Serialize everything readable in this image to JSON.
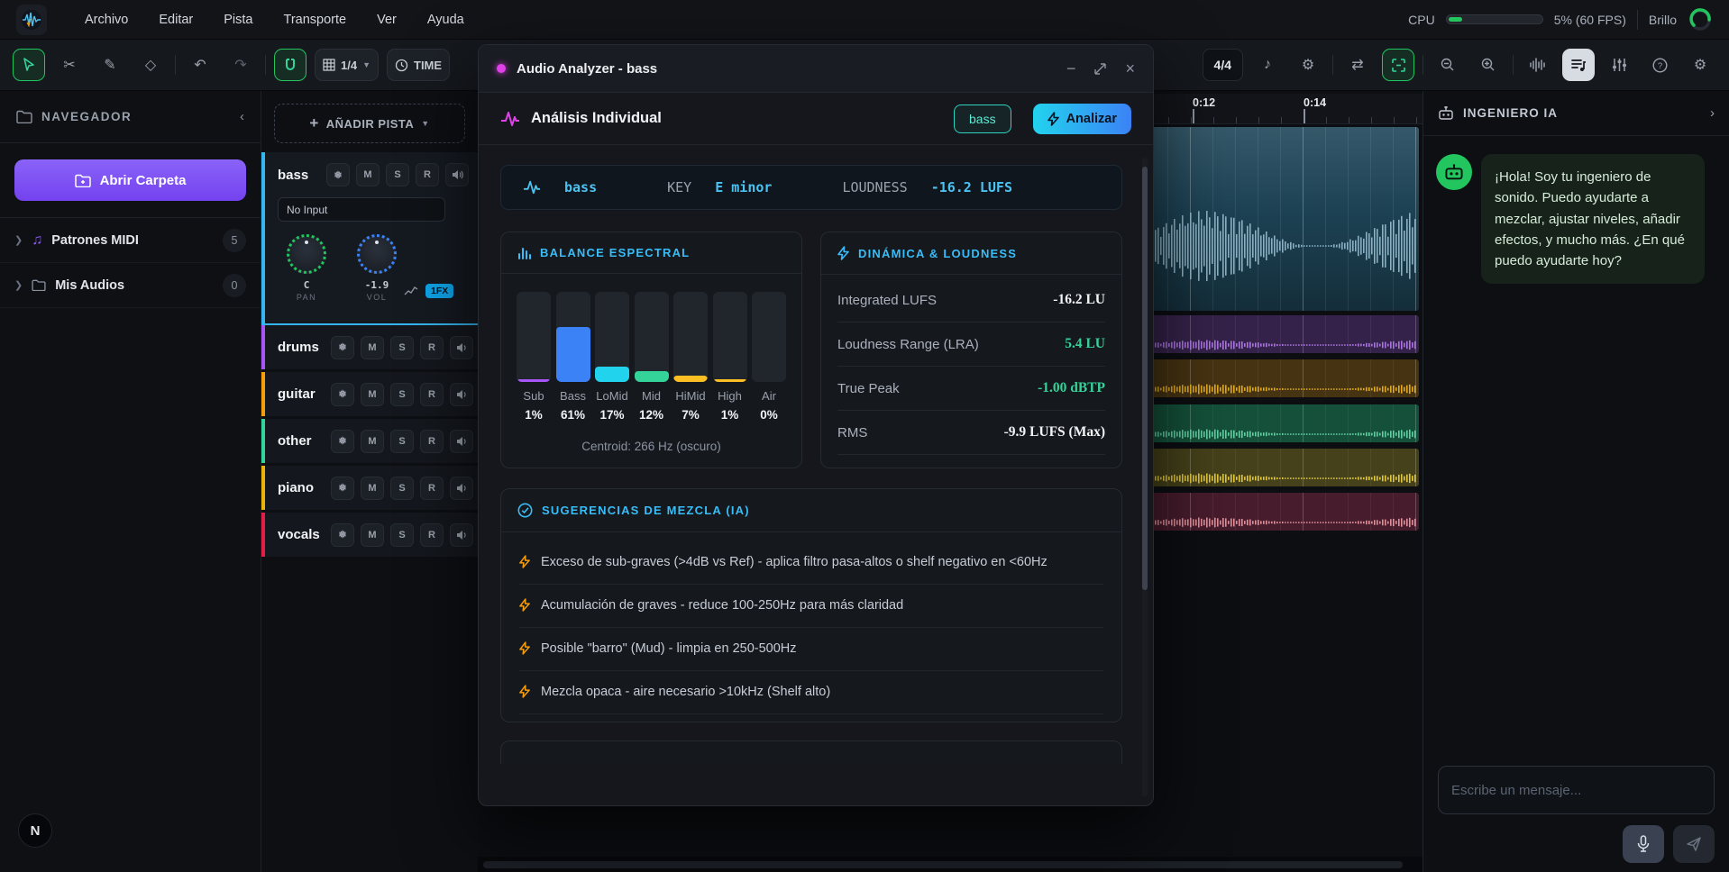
{
  "menubar": {
    "items": [
      "Archivo",
      "Editar",
      "Pista",
      "Transporte",
      "Ver",
      "Ayuda"
    ],
    "cpu_label": "CPU",
    "cpu_value": "5% (60 FPS)",
    "cpu_percent": 5,
    "brightness_label": "Brillo"
  },
  "toolbar": {
    "grid_value": "1/4",
    "time_label": "TIME",
    "time_signature": "4/4",
    "accent_green": "#22c55e"
  },
  "sidebar": {
    "title": "NAVEGADOR",
    "open_folder_label": "Abrir Carpeta",
    "items": [
      {
        "label": "Patrones MIDI",
        "count": "5",
        "icon": "midi-notes-icon",
        "icon_color": "#8b5cf6"
      },
      {
        "label": "Mis Audios",
        "count": "0",
        "icon": "folder-icon",
        "icon_color": "#8b93a0"
      }
    ]
  },
  "track_panel": {
    "add_track_label": "AÑADIR PISTA",
    "button_labels": {
      "mute": "M",
      "solo": "S",
      "record": "R"
    },
    "selected_track": {
      "name": "bass",
      "color": "#36b6f0",
      "input": "No Input",
      "pan_value": "C",
      "pan_label": "PAN",
      "vol_value": "-1.9",
      "vol_label": "VOL",
      "fx_badge": "1FX"
    },
    "tracks": [
      {
        "name": "drums",
        "color": "#a855f7"
      },
      {
        "name": "guitar",
        "color": "#f59e0b"
      },
      {
        "name": "other",
        "color": "#34d399"
      },
      {
        "name": "piano",
        "color": "#eab308"
      },
      {
        "name": "vocals",
        "color": "#e11d48"
      }
    ]
  },
  "timeline": {
    "ruler_labels": [
      "0:12",
      "0:14"
    ],
    "selected_clip": {
      "track": "bass",
      "color_top": "#35596a",
      "color_bottom": "#142e3a",
      "wave_color": "#9fc6d8"
    },
    "lanes": [
      {
        "track": "drums",
        "clip_color": "#35224a",
        "wave_color": "#c084fc"
      },
      {
        "track": "guitar",
        "clip_color": "#463312",
        "wave_color": "#fbbf24"
      },
      {
        "track": "other",
        "clip_color": "#14503a",
        "wave_color": "#6ee7b7"
      },
      {
        "track": "piano",
        "clip_color": "#45411a",
        "wave_color": "#fde047"
      },
      {
        "track": "vocals",
        "clip_color": "#47203054",
        "wave_color": "#fda4af"
      }
    ]
  },
  "modal": {
    "title": "Audio Analyzer - bass",
    "section_title": "Análisis Individual",
    "track_chip": "bass",
    "analyze_button": "Analizar",
    "summary": {
      "track": "bass",
      "key_label": "KEY",
      "key_value": "E minor",
      "loudness_label": "LOUDNESS",
      "loudness_value": "-16.2 LUFS"
    },
    "spectral": {
      "title": "BALANCE ESPECTRAL",
      "centroid": "Centroid: 266 Hz (oscuro)",
      "chart_data": {
        "type": "bar",
        "categories": [
          "Sub",
          "Bass",
          "LoMid",
          "Mid",
          "HiMid",
          "High",
          "Air"
        ],
        "values": [
          1,
          61,
          17,
          12,
          7,
          1,
          0
        ],
        "unit": "%",
        "colors": [
          "#a855f7",
          "#3b82f6",
          "#22d3ee",
          "#34d399",
          "#fbbf24",
          "#fbbf24",
          "#64748b"
        ],
        "ylim": [
          0,
          100
        ],
        "title": "BALANCE ESPECTRAL"
      }
    },
    "dynamics": {
      "title": "DINÁMICA & LOUDNESS",
      "rows": [
        {
          "label": "Integrated LUFS",
          "value": "-16.2 LU",
          "color": "white"
        },
        {
          "label": "Loudness Range (LRA)",
          "value": "5.4 LU",
          "color": "green"
        },
        {
          "label": "True Peak",
          "value": "-1.00 dBTP",
          "color": "green"
        },
        {
          "label": "RMS",
          "value": "-9.9 LUFS (Max)",
          "color": "white"
        }
      ]
    },
    "suggestions": {
      "title": "SUGERENCIAS DE MEZCLA (IA)",
      "items": [
        "Exceso de sub-graves (>4dB vs Ref) - aplica filtro pasa-altos o shelf negativo en <60Hz",
        "Acumulación de graves - reduce 100-250Hz para más claridad",
        "Posible \"barro\" (Mud) - limpia en 250-500Hz",
        "Mezcla opaca - aire necesario >10kHz (Shelf alto)"
      ]
    }
  },
  "chat": {
    "title": "INGENIERO IA",
    "message": "¡Hola! Soy tu ingeniero de sonido. Puedo ayudarte a mezclar, ajustar niveles, añadir efectos, y mucho más. ¿En qué puedo ayudarte hoy?",
    "input_placeholder": "Escribe un mensaje...",
    "avatar_color": "#22c55e"
  },
  "badge": {
    "letter": "N"
  }
}
